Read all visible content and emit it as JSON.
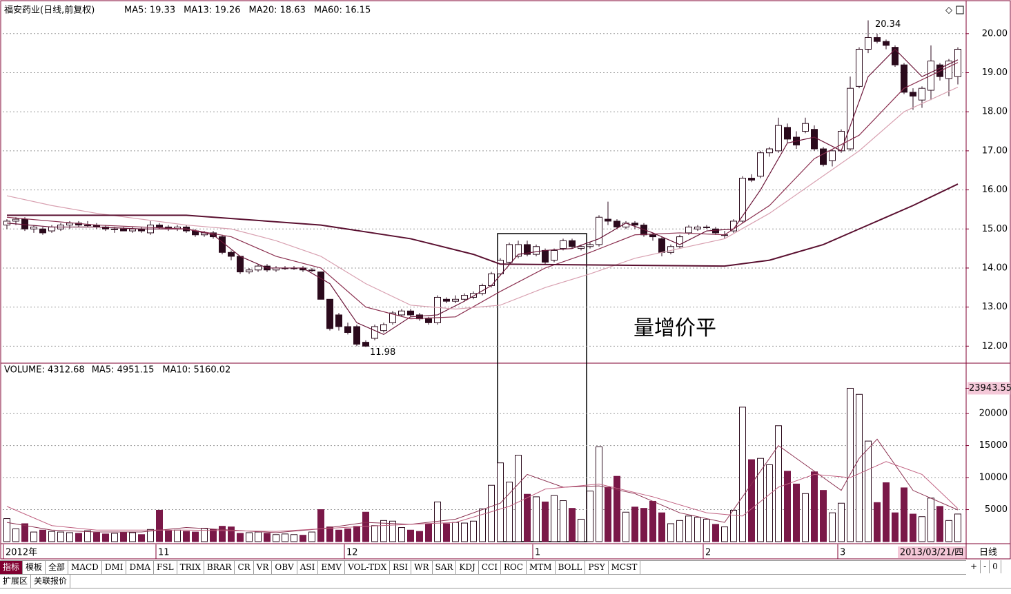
{
  "chart_data": [
    {
      "type": "candlestick",
      "title": "福安药业(日线,前复权)",
      "candles": [
        [
          15.1,
          15.25,
          15.0,
          15.2
        ],
        [
          15.2,
          15.3,
          15.1,
          15.25
        ],
        [
          15.25,
          15.3,
          14.95,
          15.0
        ],
        [
          15.0,
          15.1,
          14.9,
          15.05
        ],
        [
          15.0,
          15.05,
          14.85,
          14.9
        ],
        [
          14.95,
          15.1,
          14.9,
          15.05
        ],
        [
          15.0,
          15.15,
          14.95,
          15.1
        ],
        [
          15.1,
          15.2,
          15.0,
          15.15
        ],
        [
          15.15,
          15.2,
          15.05,
          15.1
        ],
        [
          15.1,
          15.2,
          15.05,
          15.1
        ],
        [
          15.1,
          15.15,
          15.0,
          15.05
        ],
        [
          15.05,
          15.1,
          14.95,
          15.0
        ],
        [
          15.0,
          15.05,
          14.9,
          15.0
        ],
        [
          15.0,
          15.05,
          14.95,
          14.95
        ],
        [
          14.95,
          15.05,
          14.9,
          15.0
        ],
        [
          15.0,
          15.05,
          14.9,
          14.95
        ],
        [
          14.9,
          15.2,
          14.85,
          15.1
        ],
        [
          15.1,
          15.15,
          15.0,
          15.05
        ],
        [
          15.05,
          15.1,
          14.95,
          15.0
        ],
        [
          15.0,
          15.1,
          14.95,
          15.05
        ],
        [
          15.05,
          15.1,
          14.9,
          14.95
        ],
        [
          14.95,
          15.0,
          14.8,
          14.85
        ],
        [
          14.85,
          14.95,
          14.8,
          14.9
        ],
        [
          14.9,
          14.95,
          14.75,
          14.8
        ],
        [
          14.8,
          14.85,
          14.35,
          14.4
        ],
        [
          14.4,
          14.45,
          14.2,
          14.3
        ],
        [
          14.3,
          14.3,
          13.85,
          13.9
        ],
        [
          13.9,
          14.0,
          13.85,
          13.95
        ],
        [
          13.95,
          14.1,
          13.9,
          14.05
        ],
        [
          14.05,
          14.1,
          13.9,
          13.95
        ],
        [
          13.95,
          14.05,
          13.9,
          14.0
        ],
        [
          14.0,
          14.05,
          13.95,
          14.0
        ],
        [
          14.0,
          14.05,
          13.95,
          14.0
        ],
        [
          14.0,
          14.05,
          13.9,
          13.95
        ],
        [
          13.95,
          14.0,
          13.9,
          13.95
        ],
        [
          13.9,
          13.9,
          13.2,
          13.2
        ],
        [
          13.2,
          13.2,
          12.4,
          12.45
        ],
        [
          12.8,
          12.85,
          12.4,
          12.5
        ],
        [
          12.5,
          12.6,
          12.3,
          12.35
        ],
        [
          12.5,
          12.55,
          12.0,
          12.05
        ],
        [
          12.1,
          12.15,
          11.98,
          12.0
        ],
        [
          12.2,
          12.55,
          12.15,
          12.5
        ],
        [
          12.4,
          12.6,
          12.35,
          12.55
        ],
        [
          12.6,
          12.9,
          12.55,
          12.85
        ],
        [
          12.8,
          12.95,
          12.75,
          12.9
        ],
        [
          12.9,
          12.95,
          12.75,
          12.8
        ],
        [
          12.8,
          12.85,
          12.65,
          12.7
        ],
        [
          12.7,
          12.75,
          12.55,
          12.6
        ],
        [
          12.6,
          13.3,
          12.55,
          13.25
        ],
        [
          13.2,
          13.25,
          13.1,
          13.15
        ],
        [
          13.15,
          13.3,
          13.1,
          13.2
        ],
        [
          13.2,
          13.35,
          13.15,
          13.3
        ],
        [
          13.25,
          13.4,
          13.2,
          13.35
        ],
        [
          13.35,
          13.6,
          13.3,
          13.55
        ],
        [
          13.55,
          13.9,
          13.5,
          13.85
        ],
        [
          13.85,
          14.25,
          13.8,
          14.2
        ],
        [
          14.15,
          14.65,
          14.1,
          14.6
        ],
        [
          14.3,
          14.7,
          14.25,
          14.6
        ],
        [
          14.6,
          14.7,
          14.3,
          14.35
        ],
        [
          14.35,
          14.6,
          14.3,
          14.55
        ],
        [
          14.45,
          14.5,
          14.1,
          14.15
        ],
        [
          14.2,
          14.5,
          14.15,
          14.45
        ],
        [
          14.5,
          14.75,
          14.45,
          14.7
        ],
        [
          14.7,
          14.75,
          14.5,
          14.55
        ],
        [
          14.5,
          14.6,
          14.45,
          14.55
        ],
        [
          14.55,
          14.65,
          14.5,
          14.6
        ],
        [
          14.6,
          15.35,
          14.55,
          15.3
        ],
        [
          15.25,
          15.7,
          15.1,
          15.2
        ],
        [
          15.2,
          15.25,
          15.0,
          15.05
        ],
        [
          15.05,
          15.2,
          15.0,
          15.15
        ],
        [
          15.15,
          15.2,
          15.0,
          15.1
        ],
        [
          15.1,
          15.15,
          14.8,
          14.85
        ],
        [
          14.85,
          14.9,
          14.7,
          14.8
        ],
        [
          14.75,
          14.8,
          14.3,
          14.4
        ],
        [
          14.4,
          14.6,
          14.35,
          14.55
        ],
        [
          14.55,
          14.85,
          14.5,
          14.8
        ],
        [
          14.9,
          15.1,
          14.85,
          15.05
        ],
        [
          15.0,
          15.1,
          14.95,
          15.05
        ],
        [
          15.05,
          15.1,
          15.0,
          15.05
        ],
        [
          15.0,
          15.05,
          14.85,
          14.9
        ],
        [
          14.85,
          14.95,
          14.75,
          14.85
        ],
        [
          14.95,
          15.25,
          14.9,
          15.2
        ],
        [
          15.2,
          16.35,
          15.15,
          16.3
        ],
        [
          16.3,
          16.4,
          16.2,
          16.25
        ],
        [
          16.35,
          17.0,
          16.3,
          16.95
        ],
        [
          16.95,
          17.1,
          16.85,
          17.05
        ],
        [
          17.0,
          17.85,
          16.95,
          17.65
        ],
        [
          17.6,
          17.7,
          17.2,
          17.3
        ],
        [
          17.35,
          17.5,
          17.05,
          17.15
        ],
        [
          17.5,
          17.85,
          17.45,
          17.7
        ],
        [
          17.55,
          17.65,
          17.0,
          17.05
        ],
        [
          17.05,
          17.1,
          16.6,
          16.65
        ],
        [
          16.75,
          17.05,
          16.6,
          17.0
        ],
        [
          17.0,
          17.55,
          16.95,
          17.5
        ],
        [
          17.05,
          18.9,
          17.0,
          18.6
        ],
        [
          18.65,
          19.65,
          18.6,
          19.6
        ],
        [
          19.6,
          20.34,
          19.5,
          19.9
        ],
        [
          19.9,
          20.0,
          19.75,
          19.8
        ],
        [
          19.8,
          19.85,
          19.6,
          19.7
        ],
        [
          19.65,
          19.7,
          19.15,
          19.2
        ],
        [
          19.2,
          19.25,
          18.45,
          18.5
        ],
        [
          18.5,
          18.6,
          18.05,
          18.4
        ],
        [
          18.3,
          18.65,
          18.1,
          18.6
        ],
        [
          18.55,
          19.7,
          18.3,
          19.3
        ],
        [
          19.2,
          19.25,
          18.8,
          18.9
        ],
        [
          18.85,
          19.35,
          18.4,
          19.3
        ],
        [
          18.9,
          19.65,
          18.7,
          19.6
        ]
      ],
      "ylim": [
        11.6,
        20.42
      ],
      "yticks": [
        {
          "value": 12,
          "label": "12.00"
        },
        {
          "value": 13,
          "label": "13.00"
        },
        {
          "value": 14,
          "label": "14.00"
        },
        {
          "value": 15,
          "label": "15.00"
        },
        {
          "value": 16,
          "label": "16.00"
        },
        {
          "value": 17,
          "label": "17.00"
        },
        {
          "value": 18,
          "label": "18.00"
        },
        {
          "value": 19,
          "label": "19.00"
        },
        {
          "value": 20,
          "label": "20.00"
        }
      ],
      "series": [
        {
          "name": "MA5: 19.33",
          "color": "#6b1538",
          "label_color": "#000",
          "x": [
            0,
            5,
            10,
            15,
            20,
            23,
            26,
            29,
            33,
            36,
            39,
            42,
            45,
            48,
            51,
            54,
            57,
            60,
            63,
            66,
            69,
            72,
            75,
            78,
            81,
            84,
            87,
            90,
            93,
            96,
            99,
            102,
            106
          ],
          "values": [
            15.15,
            15.05,
            15.05,
            15.0,
            15.0,
            14.85,
            14.3,
            14.0,
            14.0,
            13.6,
            12.6,
            12.3,
            12.75,
            12.8,
            13.15,
            13.55,
            14.35,
            14.45,
            14.5,
            14.75,
            15.15,
            14.9,
            14.6,
            14.95,
            15.0,
            16.0,
            17.2,
            17.35,
            17.0,
            18.9,
            19.6,
            18.9,
            19.33
          ]
        },
        {
          "name": "MA13: 19.26",
          "color": "#8b3050",
          "label_color": "#8b3050",
          "x": [
            0,
            10,
            20,
            25,
            30,
            35,
            40,
            45,
            50,
            55,
            60,
            65,
            70,
            75,
            80,
            85,
            90,
            95,
            100,
            106
          ],
          "values": [
            15.3,
            15.1,
            15.0,
            14.8,
            14.3,
            14.0,
            13.0,
            12.7,
            12.75,
            13.4,
            14.0,
            14.4,
            14.85,
            14.9,
            14.85,
            15.6,
            16.8,
            17.4,
            18.6,
            19.26
          ]
        },
        {
          "name": "MA20: 18.63",
          "color": "#d8a0b0",
          "label_color": "#d07090",
          "x": [
            0,
            5,
            10,
            20,
            25,
            30,
            35,
            40,
            45,
            50,
            55,
            60,
            65,
            70,
            75,
            80,
            85,
            90,
            95,
            100,
            106
          ],
          "values": [
            15.85,
            15.6,
            15.4,
            15.1,
            15.0,
            14.7,
            14.3,
            13.6,
            13.05,
            12.95,
            13.05,
            13.5,
            13.85,
            14.25,
            14.5,
            14.75,
            15.4,
            16.2,
            17.0,
            18.0,
            18.63
          ]
        },
        {
          "name": "MA60: 16.15",
          "color": "#5a1030",
          "label_color": "#000",
          "x": [
            0,
            20,
            35,
            45,
            52,
            55,
            80,
            85,
            91,
            95,
            101,
            106
          ],
          "values": [
            15.35,
            15.35,
            15.1,
            14.75,
            14.35,
            14.1,
            14.05,
            14.2,
            14.6,
            15.0,
            15.6,
            16.15
          ]
        }
      ],
      "high_label": 20.34,
      "low_label": 11.98,
      "note": "量增价平"
    },
    {
      "type": "bar",
      "title": "VOLUME: 4312.68",
      "values": [
        3600,
        2000,
        2800,
        1500,
        1800,
        1600,
        1500,
        1400,
        1300,
        1700,
        1400,
        1200,
        1300,
        1500,
        1400,
        1100,
        1900,
        4900,
        1700,
        1800,
        1600,
        1500,
        2100,
        1900,
        2400,
        2300,
        1300,
        1400,
        1500,
        1300,
        1100,
        1200,
        1100,
        1000,
        1500,
        5000,
        2300,
        1800,
        2000,
        2400,
        4600,
        2500,
        3300,
        3200,
        2200,
        1800,
        1600,
        2800,
        6200,
        2800,
        3000,
        2900,
        3200,
        5100,
        8800,
        12300,
        9300,
        13500,
        7400,
        7000,
        6200,
        7200,
        6400,
        5200,
        3500,
        7900,
        14800,
        8500,
        10200,
        4600,
        5400,
        5200,
        6300,
        4500,
        2800,
        3300,
        4000,
        3800,
        3500,
        2700,
        2300,
        4900,
        21000,
        12800,
        13000,
        12000,
        18100,
        11000,
        9000,
        7500,
        10900,
        8000,
        4500,
        6000,
        23943.55,
        23000,
        15700,
        6100,
        9200,
        4500,
        8400,
        4300,
        3900,
        6800,
        5500,
        3300,
        4312.68
      ],
      "ylim": [
        0,
        26470
      ],
      "yticks": [
        5000,
        10000,
        15000,
        20000,
        23943.55
      ],
      "series": [
        {
          "name": "MA5: 4951.15",
          "color": "#8b3050",
          "x": [
            0,
            5,
            10,
            15,
            20,
            25,
            30,
            35,
            40,
            45,
            50,
            55,
            58,
            62,
            66,
            70,
            75,
            80,
            82,
            86,
            90,
            93,
            95,
            97,
            101,
            106
          ],
          "values": [
            3000,
            1800,
            1500,
            1500,
            2200,
            1800,
            1400,
            2000,
            3000,
            2700,
            3500,
            6000,
            10500,
            8500,
            8700,
            7500,
            4500,
            3000,
            7000,
            15000,
            11000,
            8000,
            13000,
            16000,
            8000,
            4951.15
          ]
        },
        {
          "name": "MA10: 5160.02",
          "color": "#c06080",
          "x": [
            0,
            5,
            10,
            20,
            30,
            40,
            50,
            56,
            60,
            66,
            72,
            78,
            82,
            86,
            90,
            94,
            98,
            102,
            106
          ],
          "values": [
            5500,
            2500,
            1800,
            1800,
            1600,
            2400,
            3000,
            5500,
            8200,
            9000,
            7000,
            4500,
            4000,
            8500,
            10500,
            10000,
            12500,
            10500,
            5160.02
          ]
        }
      ],
      "xticks": [
        {
          "value": 0,
          "label": "2012年"
        },
        {
          "value": 17,
          "label": "11"
        },
        {
          "value": 38,
          "label": "12"
        },
        {
          "value": 59,
          "label": "1"
        },
        {
          "value": 78,
          "label": "2"
        },
        {
          "value": 93,
          "label": "3"
        }
      ],
      "last_date": "2013/03/21/四"
    }
  ],
  "toolbar": {
    "tabs": [
      "指标",
      "模板",
      "全部",
      "MACD",
      "DMI",
      "DMA",
      "FSL",
      "TRIX",
      "BRAR",
      "CR",
      "VR",
      "OBV",
      "ASI",
      "EMV",
      "VOL-TDX",
      "RSI",
      "WR",
      "SAR",
      "KDJ",
      "CCI",
      "ROC",
      "MTM",
      "BOLL",
      "PSY",
      "MCST"
    ],
    "period": "日线",
    "zoom": [
      "+",
      "-",
      "0"
    ],
    "bottom_tabs": [
      "扩展区",
      "关联报价"
    ]
  }
}
